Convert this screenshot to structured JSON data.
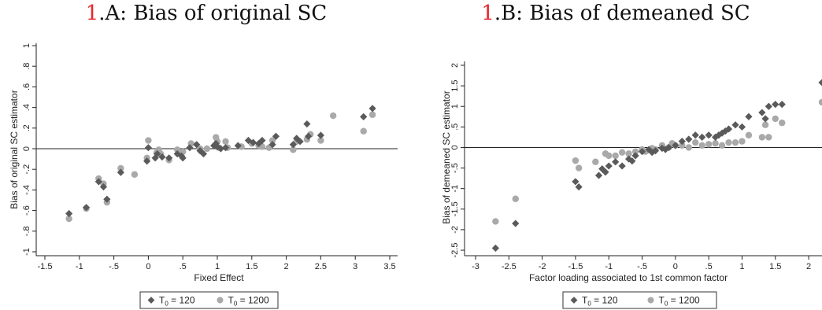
{
  "chart_data": [
    {
      "type": "scatter",
      "title_num": "1",
      "title": ".A: Bias of original SC",
      "xlabel": "Fixed Effect",
      "ylabel": "Bias of original SC estimator",
      "xlim": [
        -1.5,
        3.5
      ],
      "ylim": [
        -1,
        1
      ],
      "xticks": [
        -1.5,
        -1,
        -0.5,
        0,
        0.5,
        1,
        1.5,
        2,
        2.5,
        3,
        3.5
      ],
      "xtick_labels": [
        "-1.5",
        "-1",
        "-.5",
        "0",
        ".5",
        "1",
        "1.5",
        "2",
        "2.5",
        "3",
        "3.5"
      ],
      "yticks": [
        -1,
        -0.8,
        -0.6,
        -0.4,
        -0.2,
        0,
        0.2,
        0.4,
        0.6,
        0.8,
        1
      ],
      "ytick_labels": [
        "-1",
        "-.8",
        "-.6",
        "-.4",
        "-.2",
        "0",
        ".2",
        ".4",
        ".6",
        ".8",
        "1"
      ],
      "reference_line_y": 0,
      "legend": {
        "position": "bottom",
        "items": [
          {
            "label": "T",
            "sub": "0",
            "rest": " = 120",
            "marker": "diamond"
          },
          {
            "label": "T",
            "sub": "0",
            "rest": " = 1200",
            "marker": "circle"
          }
        ]
      },
      "series": [
        {
          "name": "T0 = 120",
          "marker": "diamond",
          "color": "#5a5a5a",
          "x": [
            -1.15,
            -0.9,
            -0.72,
            -0.65,
            -0.6,
            -0.4,
            0.0,
            -0.02,
            0.1,
            0.13,
            0.2,
            0.3,
            0.42,
            0.48,
            0.5,
            0.6,
            0.7,
            0.75,
            0.8,
            0.95,
            0.98,
            1.0,
            1.05,
            1.12,
            1.3,
            1.45,
            1.52,
            1.6,
            1.65,
            1.8,
            1.85,
            2.1,
            2.15,
            2.2,
            2.3,
            2.32,
            2.5,
            3.12,
            3.25
          ],
          "y": [
            -0.63,
            -0.57,
            -0.32,
            -0.37,
            -0.49,
            -0.23,
            0.01,
            -0.12,
            -0.09,
            -0.05,
            -0.08,
            -0.09,
            -0.05,
            -0.07,
            -0.09,
            0.01,
            0.04,
            -0.02,
            -0.05,
            0.03,
            0.05,
            0.02,
            0.0,
            0.01,
            0.03,
            0.08,
            0.06,
            0.05,
            0.08,
            0.04,
            0.12,
            0.04,
            0.1,
            0.07,
            0.24,
            0.12,
            0.13,
            0.31,
            0.39
          ]
        },
        {
          "name": "T0 = 1200",
          "marker": "circle",
          "color": "#a9a9a9",
          "x": [
            -1.15,
            -0.9,
            -0.72,
            -0.65,
            -0.6,
            -0.4,
            -0.2,
            -0.02,
            0.0,
            0.12,
            0.15,
            0.18,
            0.3,
            0.42,
            0.5,
            0.62,
            0.75,
            0.85,
            0.98,
            1.0,
            1.02,
            1.12,
            1.15,
            1.35,
            1.5,
            1.6,
            1.65,
            1.75,
            1.8,
            2.1,
            2.15,
            2.3,
            2.35,
            2.5,
            2.68,
            3.12,
            3.25
          ],
          "y": [
            -0.68,
            -0.58,
            -0.29,
            -0.34,
            -0.52,
            -0.19,
            -0.25,
            -0.09,
            0.08,
            -0.04,
            -0.01,
            -0.05,
            -0.11,
            -0.01,
            -0.03,
            0.05,
            0.0,
            0.0,
            0.11,
            0.07,
            0.01,
            0.07,
            0.01,
            0.02,
            0.05,
            0.03,
            0.02,
            0.01,
            0.08,
            -0.01,
            0.07,
            0.09,
            0.14,
            0.08,
            0.32,
            0.17,
            0.33
          ]
        }
      ]
    },
    {
      "type": "scatter",
      "title_num": "1",
      "title": ".B: Bias of demeaned SC",
      "xlabel": "Factor loading associated to 1st common factor",
      "ylabel": "Bias of demeaned SC estimator",
      "xlim": [
        -3,
        2.2
      ],
      "ylim": [
        -2.5,
        2
      ],
      "xticks": [
        -3,
        -2.5,
        -2,
        -1.5,
        -1,
        -0.5,
        0,
        0.5,
        1,
        1.5,
        2
      ],
      "xtick_labels": [
        "-3",
        "-2.5",
        "-2",
        "-1.5",
        "-1",
        "-.5",
        "0",
        ".5",
        "1",
        "1.5",
        "2"
      ],
      "yticks": [
        -2.5,
        -2,
        -1.5,
        -1,
        -0.5,
        0,
        0.5,
        1,
        1.5,
        2
      ],
      "ytick_labels": [
        "-2.5",
        "-2",
        "-1.5",
        "-1",
        "-.5",
        "0",
        ".5",
        "1",
        "1.5",
        "2"
      ],
      "reference_line_y": 0,
      "legend": {
        "position": "bottom",
        "items": [
          {
            "label": "T",
            "sub": "0",
            "rest": " = 120",
            "marker": "diamond"
          },
          {
            "label": "T",
            "sub": "0",
            "rest": " = 1200",
            "marker": "circle"
          }
        ]
      },
      "series": [
        {
          "name": "T0 = 120",
          "marker": "diamond",
          "color": "#5a5a5a",
          "x": [
            -2.7,
            -2.4,
            -1.5,
            -1.45,
            -1.15,
            -1.1,
            -1.05,
            -1.0,
            -0.9,
            -0.8,
            -0.7,
            -0.65,
            -0.6,
            -0.5,
            -0.4,
            -0.35,
            -0.3,
            -0.2,
            -0.15,
            -0.1,
            0.0,
            0.1,
            0.2,
            0.3,
            0.4,
            0.5,
            0.6,
            0.65,
            0.7,
            0.75,
            0.8,
            0.9,
            1.0,
            1.1,
            1.3,
            1.35,
            1.4,
            1.5,
            1.6,
            2.2
          ],
          "y": [
            -2.45,
            -1.85,
            -0.83,
            -0.96,
            -0.68,
            -0.52,
            -0.6,
            -0.45,
            -0.35,
            -0.45,
            -0.28,
            -0.33,
            -0.2,
            -0.1,
            -0.05,
            -0.12,
            -0.08,
            -0.02,
            -0.05,
            0.0,
            0.05,
            0.15,
            0.2,
            0.3,
            0.25,
            0.3,
            0.25,
            0.3,
            0.35,
            0.4,
            0.45,
            0.55,
            0.5,
            0.75,
            0.85,
            0.7,
            1.0,
            1.05,
            1.05,
            1.58
          ]
        },
        {
          "name": "T0 = 1200",
          "marker": "circle",
          "color": "#a9a9a9",
          "x": [
            -2.7,
            -2.4,
            -1.5,
            -1.45,
            -1.2,
            -1.05,
            -1.0,
            -0.9,
            -0.8,
            -0.7,
            -0.6,
            -0.5,
            -0.45,
            -0.35,
            -0.3,
            -0.2,
            -0.1,
            -0.05,
            0.0,
            0.1,
            0.2,
            0.3,
            0.4,
            0.5,
            0.6,
            0.7,
            0.8,
            0.9,
            1.0,
            1.1,
            1.3,
            1.35,
            1.4,
            1.5,
            1.6,
            2.2
          ],
          "y": [
            -1.8,
            -1.25,
            -0.32,
            -0.5,
            -0.35,
            -0.15,
            -0.2,
            -0.2,
            -0.12,
            -0.15,
            -0.1,
            -0.05,
            -0.1,
            -0.02,
            -0.05,
            0.05,
            0.0,
            0.1,
            0.05,
            0.05,
            0.0,
            0.12,
            0.05,
            0.08,
            0.1,
            0.05,
            0.12,
            0.12,
            0.15,
            0.3,
            0.25,
            0.55,
            0.25,
            0.7,
            0.6,
            1.1
          ]
        }
      ]
    }
  ]
}
